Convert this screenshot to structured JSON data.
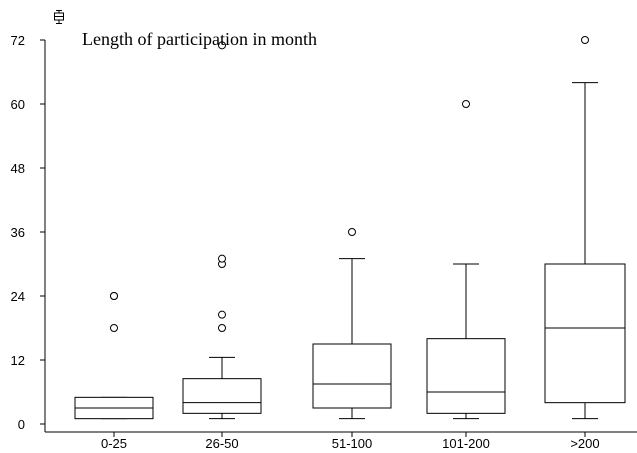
{
  "chart_data": {
    "type": "box",
    "title": "Length of participation in month",
    "categories": [
      "0-25",
      "26-50",
      "51-100",
      "101-200",
      ">200"
    ],
    "y_ticks": [
      "0",
      "12",
      "24",
      "36",
      "48",
      "60",
      "72"
    ],
    "ylim": [
      0,
      72
    ],
    "grid": false,
    "boxes": [
      {
        "category": "0-25",
        "whisker_low": 1,
        "q1": 1,
        "median": 3,
        "q3": 5,
        "whisker_high": 5,
        "outliers": [
          18,
          24,
          24
        ]
      },
      {
        "category": "26-50",
        "whisker_low": 1,
        "q1": 2,
        "median": 4,
        "q3": 8.5,
        "whisker_high": 12.5,
        "outliers": [
          18,
          20.5,
          30,
          31,
          71
        ]
      },
      {
        "category": "51-100",
        "whisker_low": 1,
        "q1": 3,
        "median": 7.5,
        "q3": 15,
        "whisker_high": 31,
        "outliers": [
          36
        ]
      },
      {
        "category": "101-200",
        "whisker_low": 1,
        "q1": 2,
        "median": 6,
        "q3": 16,
        "whisker_high": 30,
        "outliers": [
          60
        ]
      },
      {
        "category": ">200",
        "whisker_low": 1,
        "q1": 4,
        "median": 18,
        "q3": 30,
        "whisker_high": 64,
        "outliers": [
          72
        ]
      }
    ]
  }
}
